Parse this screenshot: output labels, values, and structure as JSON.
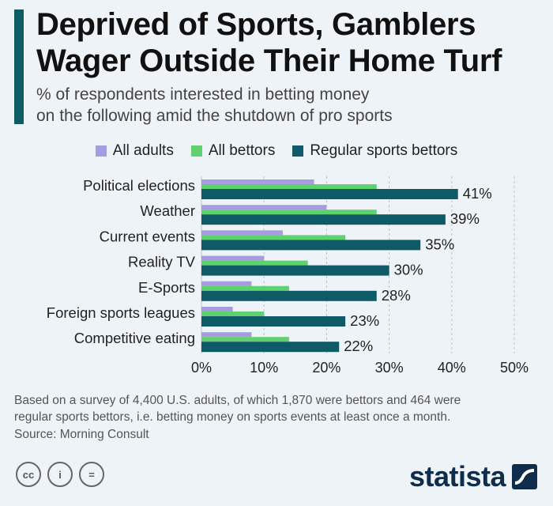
{
  "header": {
    "title_line1": "Deprived of Sports, Gamblers",
    "title_line2": "Wager Outside Their Home Turf",
    "subtitle_line1": "% of respondents interested in betting money",
    "subtitle_line2": "on the following amid the shutdown of pro sports"
  },
  "chart_data": {
    "type": "bar",
    "orientation": "horizontal",
    "categories": [
      "Political elections",
      "Weather",
      "Current events",
      "Reality TV",
      "E-Sports",
      "Foreign sports leagues",
      "Competitive eating"
    ],
    "series": [
      {
        "name": "All adults",
        "color": "#a79ce0",
        "values": [
          18,
          20,
          13,
          10,
          8,
          5,
          8
        ]
      },
      {
        "name": "All bettors",
        "color": "#5fd16e",
        "values": [
          28,
          28,
          23,
          17,
          14,
          10,
          14
        ]
      },
      {
        "name": "Regular sports bettors",
        "color": "#0f5a67",
        "values": [
          41,
          39,
          35,
          30,
          28,
          23,
          22
        ]
      }
    ],
    "data_labels": [
      "41%",
      "39%",
      "35%",
      "30%",
      "28%",
      "23%",
      "22%"
    ],
    "xticks": [
      "0%",
      "10%",
      "20%",
      "30%",
      "40%",
      "50%"
    ],
    "xlim": [
      0,
      50
    ],
    "legend_position": "top",
    "grid": true
  },
  "footnote": {
    "line1": "Based on a survey of 4,400 U.S. adults, of which 1,870 were bettors and 464 were",
    "line2": "regular sports bettors, i.e. betting money on sports events at least once a month.",
    "source": "Source: Morning Consult"
  },
  "license": {
    "cc": "cc",
    "by": "i",
    "nd": "="
  },
  "brand": {
    "name": "statista"
  }
}
